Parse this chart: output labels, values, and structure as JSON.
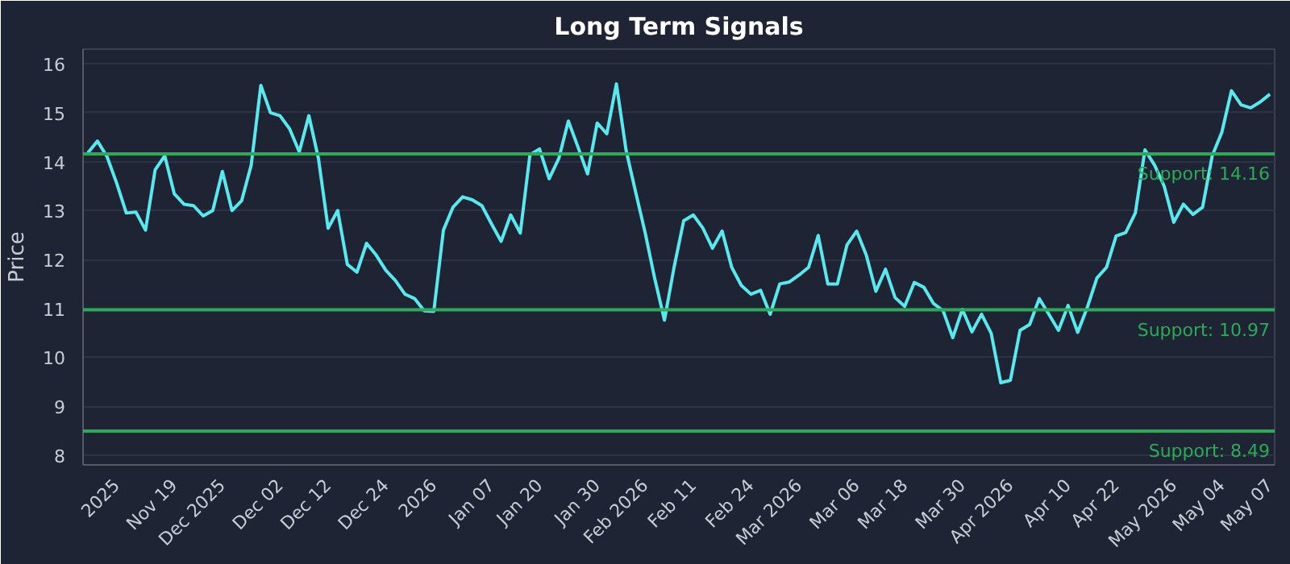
{
  "chart_data": {
    "type": "line",
    "title": "Long Term Signals",
    "ylabel": "Price",
    "categories": [
      null,
      null,
      null,
      "2025",
      null,
      null,
      null,
      null,
      null,
      "Nov 19",
      null,
      null,
      null,
      null,
      "Dec 2025",
      null,
      null,
      null,
      null,
      null,
      "Dec 02",
      null,
      null,
      null,
      null,
      "Dec 12",
      null,
      null,
      null,
      null,
      null,
      "Dec 24",
      null,
      null,
      null,
      null,
      "2026",
      null,
      null,
      null,
      null,
      null,
      "Jan 07",
      null,
      null,
      null,
      null,
      "Jan 20",
      null,
      null,
      null,
      null,
      null,
      "Jan 30",
      null,
      null,
      null,
      null,
      "Feb 2026",
      null,
      null,
      null,
      null,
      "Feb 11",
      null,
      null,
      null,
      null,
      null,
      "Feb 24",
      null,
      null,
      null,
      null,
      "Mar 2026",
      null,
      null,
      null,
      null,
      null,
      "Mar 06",
      null,
      null,
      null,
      null,
      "Mar 18",
      null,
      null,
      null,
      null,
      null,
      "Mar 30",
      null,
      null,
      null,
      null,
      "Apr 2026",
      null,
      null,
      null,
      null,
      null,
      "Apr 10",
      null,
      null,
      null,
      null,
      "Apr 22",
      null,
      null,
      null,
      null,
      null,
      "May 2026",
      null,
      null,
      null,
      null,
      "May 04",
      null,
      null,
      null,
      null,
      "May 07"
    ],
    "series": [
      {
        "color": "#5ce6ee",
        "values": [
          14.18,
          14.42,
          14.1,
          13.56,
          12.95,
          12.97,
          12.6,
          13.83,
          14.12,
          13.34,
          13.13,
          13.1,
          12.89,
          13.0,
          13.8,
          13.0,
          13.2,
          13.93,
          15.56,
          15.0,
          14.94,
          14.67,
          14.2,
          14.94,
          14.06,
          12.64,
          13.0,
          11.9,
          11.74,
          12.33,
          12.09,
          11.78,
          11.57,
          11.29,
          11.2,
          10.95,
          10.94,
          12.6,
          13.07,
          13.28,
          13.22,
          13.1,
          12.73,
          12.37,
          12.91,
          12.54,
          14.14,
          14.26,
          13.65,
          14.06,
          14.83,
          14.3,
          13.75,
          14.79,
          14.57,
          15.59,
          14.24,
          13.38,
          12.54,
          11.6,
          10.76,
          11.84,
          12.79,
          12.91,
          12.64,
          12.23,
          12.58,
          11.84,
          11.47,
          11.29,
          11.37,
          10.88,
          11.5,
          11.54,
          11.68,
          11.84,
          12.49,
          11.5,
          11.5,
          12.3,
          12.58,
          12.09,
          11.35,
          11.8,
          11.22,
          11.04,
          11.53,
          11.43,
          11.1,
          10.95,
          10.4,
          10.98,
          10.52,
          10.88,
          10.49,
          9.48,
          9.53,
          10.55,
          10.67,
          11.2,
          10.88,
          10.55,
          11.06,
          10.51,
          11.02,
          11.62,
          11.84,
          12.48,
          12.55,
          12.95,
          14.24,
          13.93,
          13.5,
          12.76,
          13.13,
          12.92,
          13.07,
          14.12,
          14.6,
          15.45,
          15.16,
          15.1,
          15.22,
          15.38
        ]
      }
    ],
    "ylim": [
      7.8,
      16.3
    ],
    "yticks": [
      8,
      9,
      10,
      11,
      12,
      13,
      14,
      15,
      16
    ],
    "grid": "y",
    "ref_lines": [
      {
        "axis": "y",
        "value": 14.16,
        "label": "Support: 14.16",
        "color": "#2ea85a"
      },
      {
        "axis": "y",
        "value": 10.97,
        "label": "Support: 10.97",
        "color": "#2ea85a"
      },
      {
        "axis": "y",
        "value": 8.49,
        "label": "Support: 8.49",
        "color": "#2ea85a"
      }
    ]
  }
}
